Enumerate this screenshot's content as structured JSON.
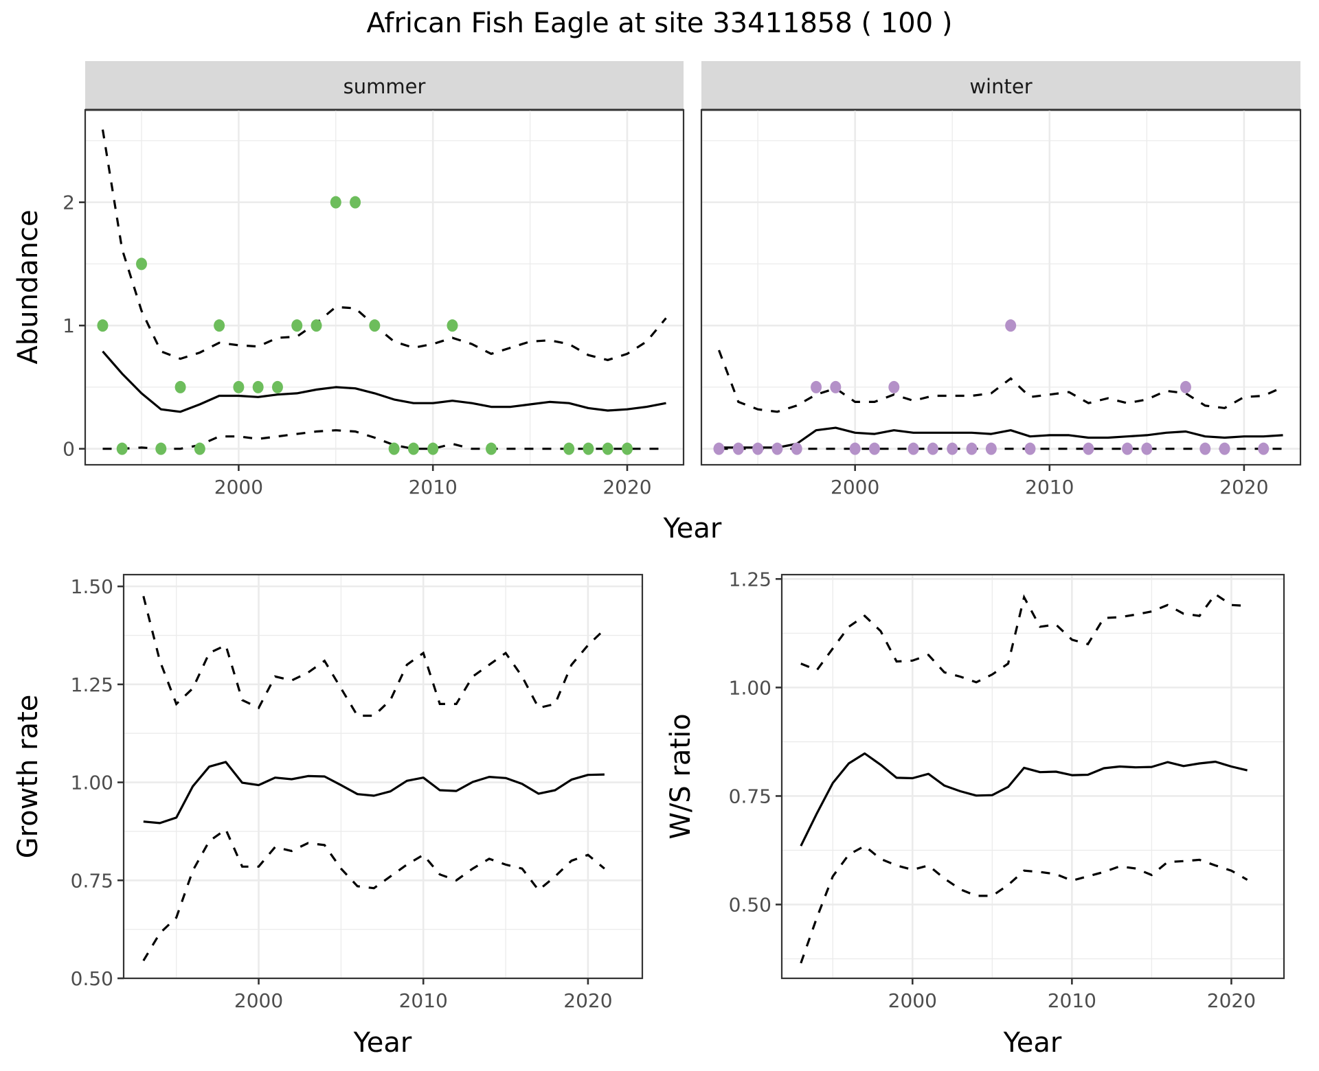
{
  "chart_data": [
    {
      "type": "scatter",
      "panel": "abundance",
      "title": "African Fish Eagle at site 33411858 ( 100 )",
      "xlabel": "Year",
      "ylabel": "Abundance",
      "xlim": [
        1992.1,
        2022.9
      ],
      "ylim": [
        -0.13,
        2.75
      ],
      "xticks": [
        2000,
        2010,
        2020
      ],
      "xtick_labels": [
        "2000",
        "2010",
        "2020"
      ],
      "yticks": [
        0,
        1,
        2
      ],
      "ytick_labels": [
        "0",
        "1",
        "2"
      ],
      "grid": true,
      "facets": [
        {
          "label": "summer",
          "point_color": "#6dbd5c",
          "points": {
            "x": [
              1993,
              1994,
              1995,
              1996,
              1997,
              1998,
              1999,
              2000,
              2001,
              2002,
              2003,
              2004,
              2005,
              2006,
              2007,
              2008,
              2009,
              2010,
              2011,
              2013,
              2017,
              2018,
              2019,
              2020
            ],
            "y": [
              1,
              0,
              1.5,
              0,
              0.5,
              0,
              1,
              0.5,
              0.5,
              0.5,
              1,
              1,
              2,
              2,
              1,
              0,
              0,
              0,
              1,
              0,
              0,
              0,
              0,
              0
            ]
          },
          "x": [
            1993,
            1994,
            1995,
            1996,
            1997,
            1998,
            1999,
            2000,
            2001,
            2002,
            2003,
            2004,
            2005,
            2006,
            2007,
            2008,
            2009,
            2010,
            2011,
            2012,
            2013,
            2014,
            2015,
            2016,
            2017,
            2018,
            2019,
            2020,
            2021,
            2022
          ],
          "mean": [
            0.79,
            0.61,
            0.45,
            0.32,
            0.3,
            0.36,
            0.43,
            0.43,
            0.42,
            0.44,
            0.45,
            0.48,
            0.5,
            0.49,
            0.45,
            0.4,
            0.37,
            0.37,
            0.39,
            0.37,
            0.34,
            0.34,
            0.36,
            0.38,
            0.37,
            0.33,
            0.31,
            0.32,
            0.34,
            0.37
          ],
          "upper": [
            2.59,
            1.62,
            1.12,
            0.79,
            0.73,
            0.78,
            0.86,
            0.84,
            0.83,
            0.9,
            0.91,
            1.02,
            1.15,
            1.14,
            1.0,
            0.87,
            0.82,
            0.85,
            0.9,
            0.85,
            0.77,
            0.82,
            0.87,
            0.88,
            0.85,
            0.76,
            0.72,
            0.77,
            0.87,
            1.06
          ],
          "lower": [
            0,
            0,
            0.01,
            0,
            0,
            0.03,
            0.1,
            0.1,
            0.08,
            0.1,
            0.12,
            0.14,
            0.15,
            0.14,
            0.09,
            0.03,
            0,
            0,
            0.04,
            0,
            0,
            0,
            0,
            0,
            0,
            0,
            0,
            0,
            0,
            0
          ]
        },
        {
          "label": "winter",
          "point_color": "#b491c8",
          "points": {
            "x": [
              1993,
              1994,
              1995,
              1996,
              1997,
              1998,
              1999,
              2000,
              2001,
              2002,
              2003,
              2004,
              2005,
              2006,
              2007,
              2008,
              2009,
              2012,
              2014,
              2015,
              2017,
              2018,
              2019,
              2021
            ],
            "y": [
              0,
              0,
              0,
              0,
              0,
              0.5,
              0.5,
              0,
              0,
              0.5,
              0,
              0,
              0,
              0,
              0,
              1,
              0,
              0,
              0,
              0,
              0.5,
              0,
              0,
              0
            ]
          },
          "x": [
            1993,
            1994,
            1995,
            1996,
            1997,
            1998,
            1999,
            2000,
            2001,
            2002,
            2003,
            2004,
            2005,
            2006,
            2007,
            2008,
            2009,
            2010,
            2011,
            2012,
            2013,
            2014,
            2015,
            2016,
            2017,
            2018,
            2019,
            2020,
            2021,
            2022
          ],
          "mean": [
            0.01,
            0.01,
            0.01,
            0.01,
            0.04,
            0.15,
            0.17,
            0.13,
            0.12,
            0.15,
            0.13,
            0.13,
            0.13,
            0.13,
            0.12,
            0.15,
            0.1,
            0.11,
            0.11,
            0.09,
            0.09,
            0.1,
            0.11,
            0.13,
            0.14,
            0.1,
            0.09,
            0.1,
            0.1,
            0.11
          ],
          "upper": [
            0.8,
            0.38,
            0.32,
            0.3,
            0.35,
            0.44,
            0.49,
            0.38,
            0.38,
            0.44,
            0.39,
            0.43,
            0.43,
            0.43,
            0.45,
            0.57,
            0.42,
            0.44,
            0.46,
            0.37,
            0.41,
            0.37,
            0.4,
            0.47,
            0.45,
            0.35,
            0.33,
            0.42,
            0.43,
            0.5
          ],
          "lower": [
            0,
            0,
            0,
            0,
            0,
            0,
            0,
            0,
            0,
            0,
            0,
            0,
            0,
            0,
            0,
            0,
            0,
            0,
            0,
            0,
            0,
            0,
            0,
            0,
            0,
            0,
            0,
            0,
            0,
            0
          ]
        }
      ]
    },
    {
      "type": "line",
      "panel": "growth",
      "xlabel": "Year",
      "ylabel": "Growth rate",
      "xlim": [
        1991.8,
        2023.3
      ],
      "ylim": [
        0.5,
        1.53
      ],
      "xticks": [
        2000,
        2010,
        2020
      ],
      "xtick_labels": [
        "2000",
        "2010",
        "2020"
      ],
      "yticks": [
        0.5,
        0.75,
        1.0,
        1.25,
        1.5
      ],
      "ytick_labels": [
        "0.50",
        "0.75",
        "1.00",
        "1.25",
        "1.50"
      ],
      "grid": true,
      "x": [
        1993,
        1994,
        1995,
        1996,
        1997,
        1998,
        1999,
        2000,
        2001,
        2002,
        2003,
        2004,
        2005,
        2006,
        2007,
        2008,
        2009,
        2010,
        2011,
        2012,
        2013,
        2014,
        2015,
        2016,
        2017,
        2018,
        2019,
        2020,
        2021
      ],
      "series": [
        {
          "name": "mean",
          "style": "solid",
          "values": [
            0.9,
            0.896,
            0.91,
            0.99,
            1.04,
            1.052,
            0.999,
            0.993,
            1.012,
            1.008,
            1.016,
            1.015,
            0.993,
            0.97,
            0.966,
            0.977,
            1.004,
            1.012,
            0.98,
            0.978,
            1.001,
            1.014,
            1.011,
            0.996,
            0.971,
            0.98,
            1.007,
            1.019,
            1.02
          ]
        },
        {
          "name": "upper",
          "style": "dashed",
          "values": [
            1.475,
            1.31,
            1.2,
            1.24,
            1.33,
            1.35,
            1.21,
            1.19,
            1.27,
            1.26,
            1.28,
            1.31,
            1.24,
            1.17,
            1.17,
            1.21,
            1.3,
            1.33,
            1.2,
            1.2,
            1.27,
            1.3,
            1.33,
            1.27,
            1.19,
            1.2,
            1.3,
            1.35,
            1.39
          ]
        },
        {
          "name": "lower",
          "style": "dashed",
          "values": [
            0.545,
            0.615,
            0.655,
            0.775,
            0.85,
            0.88,
            0.785,
            0.785,
            0.835,
            0.825,
            0.845,
            0.84,
            0.78,
            0.735,
            0.73,
            0.76,
            0.79,
            0.815,
            0.765,
            0.75,
            0.78,
            0.805,
            0.79,
            0.78,
            0.725,
            0.76,
            0.8,
            0.815,
            0.78
          ]
        }
      ]
    },
    {
      "type": "line",
      "panel": "ws_ratio",
      "xlabel": "Year",
      "ylabel": "W/S ratio",
      "xlim": [
        1991.8,
        2023.3
      ],
      "ylim": [
        0.33,
        1.26
      ],
      "xticks": [
        2000,
        2010,
        2020
      ],
      "xtick_labels": [
        "2000",
        "2010",
        "2020"
      ],
      "yticks": [
        0.5,
        0.75,
        1.0,
        1.25
      ],
      "ytick_labels": [
        "0.50",
        "0.75",
        "1.00",
        "1.25"
      ],
      "grid": true,
      "x": [
        1993,
        1994,
        1995,
        1996,
        1997,
        1998,
        1999,
        2000,
        2001,
        2002,
        2003,
        2004,
        2005,
        2006,
        2007,
        2008,
        2009,
        2010,
        2011,
        2012,
        2013,
        2014,
        2015,
        2016,
        2017,
        2018,
        2019,
        2020,
        2021
      ],
      "series": [
        {
          "name": "mean",
          "style": "solid",
          "values": [
            0.635,
            0.71,
            0.78,
            0.825,
            0.848,
            0.822,
            0.792,
            0.791,
            0.801,
            0.774,
            0.761,
            0.751,
            0.752,
            0.771,
            0.815,
            0.805,
            0.806,
            0.798,
            0.799,
            0.814,
            0.818,
            0.816,
            0.817,
            0.828,
            0.819,
            0.825,
            0.829,
            0.818,
            0.809
          ]
        },
        {
          "name": "upper",
          "style": "dashed",
          "values": [
            1.055,
            1.04,
            1.09,
            1.14,
            1.165,
            1.13,
            1.06,
            1.062,
            1.075,
            1.035,
            1.025,
            1.012,
            1.03,
            1.055,
            1.208,
            1.14,
            1.145,
            1.11,
            1.1,
            1.16,
            1.162,
            1.168,
            1.175,
            1.19,
            1.17,
            1.165,
            1.215,
            1.19,
            1.188
          ]
        },
        {
          "name": "lower",
          "style": "dashed",
          "values": [
            0.365,
            0.47,
            0.565,
            0.615,
            0.635,
            0.605,
            0.59,
            0.58,
            0.59,
            0.56,
            0.535,
            0.52,
            0.52,
            0.545,
            0.578,
            0.575,
            0.57,
            0.555,
            0.565,
            0.575,
            0.588,
            0.583,
            0.568,
            0.598,
            0.6,
            0.603,
            0.59,
            0.578,
            0.557
          ]
        }
      ]
    }
  ]
}
